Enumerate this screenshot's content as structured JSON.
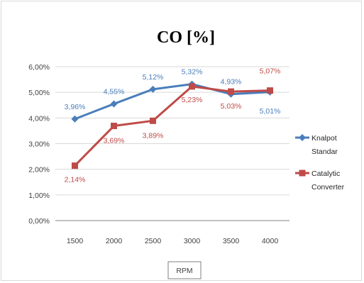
{
  "chart_data": {
    "type": "line",
    "title": "CO [%]",
    "xlabel": "RPM",
    "ylabel": "",
    "categories": [
      "1500",
      "2000",
      "2500",
      "3000",
      "3500",
      "4000"
    ],
    "y_ticks": [
      "0,00%",
      "1,00%",
      "2,00%",
      "3,00%",
      "4,00%",
      "5,00%",
      "6,00%"
    ],
    "ylim": [
      0,
      6
    ],
    "grid": true,
    "legend_position": "right",
    "series": [
      {
        "name_lines": [
          "Knalpot",
          "Standar"
        ],
        "color": "#4a7ebb",
        "marker": "diamond",
        "values": [
          3.96,
          4.55,
          5.12,
          5.32,
          4.93,
          5.01
        ],
        "labels": [
          "3,96%",
          "4,55%",
          "5,12%",
          "5,32%",
          "4,93%",
          "5,01%"
        ]
      },
      {
        "name_lines": [
          "Catalytic",
          "Converter"
        ],
        "color": "#be4b48",
        "marker": "square",
        "values": [
          2.14,
          3.69,
          3.89,
          5.23,
          5.03,
          5.07
        ],
        "labels": [
          "2,14%",
          "3,69%",
          "3,89%",
          "5,23%",
          "5,03%",
          "5,07%"
        ]
      }
    ]
  }
}
